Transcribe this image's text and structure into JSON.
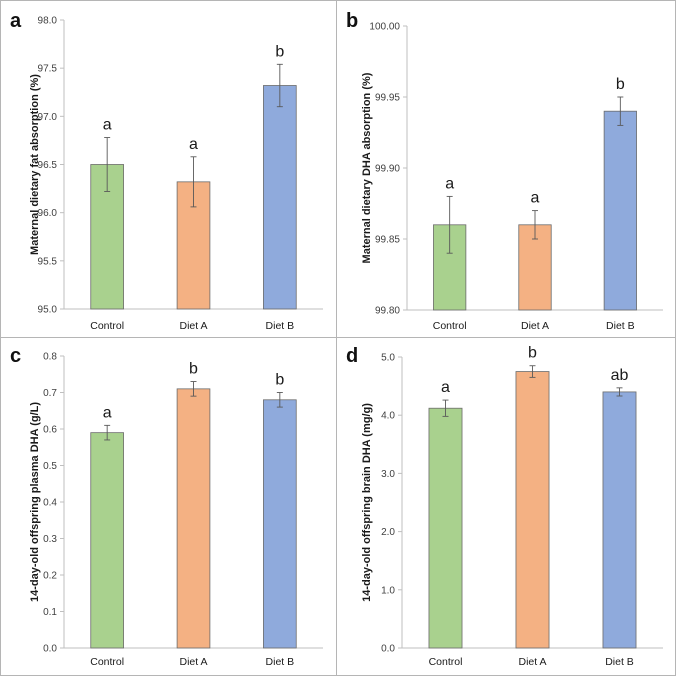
{
  "chart_data": [
    {
      "panel": "a",
      "type": "bar",
      "categories": [
        "Control",
        "Diet A",
        "Diet B"
      ],
      "values": [
        96.5,
        96.32,
        97.32
      ],
      "errors": [
        0.28,
        0.26,
        0.22
      ],
      "significance": [
        "a",
        "a",
        "b"
      ],
      "colors": [
        "#a9d18e",
        "#f4b183",
        "#8faadc"
      ],
      "ylabel": "Maternal dietary fat absorption (%)",
      "ylim": [
        95.0,
        98.0
      ],
      "yticks": [
        95.0,
        95.5,
        96.0,
        96.5,
        97.0,
        97.5,
        98.0
      ],
      "ytick_labels": [
        "95.0",
        "95.5",
        "96.0",
        "96.5",
        "97.0",
        "97.5",
        "98.0"
      ]
    },
    {
      "panel": "b",
      "type": "bar",
      "categories": [
        "Control",
        "Diet A",
        "Diet B"
      ],
      "values": [
        99.86,
        99.86,
        99.94
      ],
      "errors": [
        0.02,
        0.01,
        0.01
      ],
      "significance": [
        "a",
        "a",
        "b"
      ],
      "colors": [
        "#a9d18e",
        "#f4b183",
        "#8faadc"
      ],
      "ylabel": "Maternal dietary DHA absorption (%)",
      "ylim": [
        99.8,
        100.0
      ],
      "yticks": [
        99.8,
        99.85,
        99.9,
        99.95,
        100.0
      ],
      "ytick_labels": [
        "99.80",
        "99.85",
        "99.90",
        "99.95",
        "100.00"
      ]
    },
    {
      "panel": "c",
      "type": "bar",
      "categories": [
        "Control",
        "Diet A",
        "Diet B"
      ],
      "values": [
        0.59,
        0.71,
        0.68
      ],
      "errors": [
        0.02,
        0.02,
        0.02
      ],
      "significance": [
        "a",
        "b",
        "b"
      ],
      "colors": [
        "#a9d18e",
        "#f4b183",
        "#8faadc"
      ],
      "ylabel": "14-day-old offspring plasma DHA (g/L)",
      "ylim": [
        0.0,
        0.8
      ],
      "yticks": [
        0.0,
        0.1,
        0.2,
        0.3,
        0.4,
        0.5,
        0.6,
        0.7,
        0.8
      ],
      "ytick_labels": [
        "0.0",
        "0.1",
        "0.2",
        "0.3",
        "0.4",
        "0.5",
        "0.6",
        "0.7",
        "0.8"
      ]
    },
    {
      "panel": "d",
      "type": "bar",
      "categories": [
        "Control",
        "Diet A",
        "Diet B"
      ],
      "values": [
        4.12,
        4.75,
        4.4
      ],
      "errors": [
        0.14,
        0.1,
        0.07
      ],
      "significance": [
        "a",
        "b",
        "ab"
      ],
      "colors": [
        "#a9d18e",
        "#f4b183",
        "#8faadc"
      ],
      "ylabel": "14-day-old offspring brain DHA (mg/g)",
      "ylim": [
        0.0,
        5.0
      ],
      "yticks": [
        0.0,
        1.0,
        2.0,
        3.0,
        4.0,
        5.0
      ],
      "ytick_labels": [
        "0.0",
        "1.0",
        "2.0",
        "3.0",
        "4.0",
        "5.0"
      ]
    }
  ],
  "style": {
    "axis_color": "#bfbfbf",
    "bar_border": "#6b6b6b",
    "error_color": "#595959",
    "panel_border": "#b5b5b5"
  }
}
